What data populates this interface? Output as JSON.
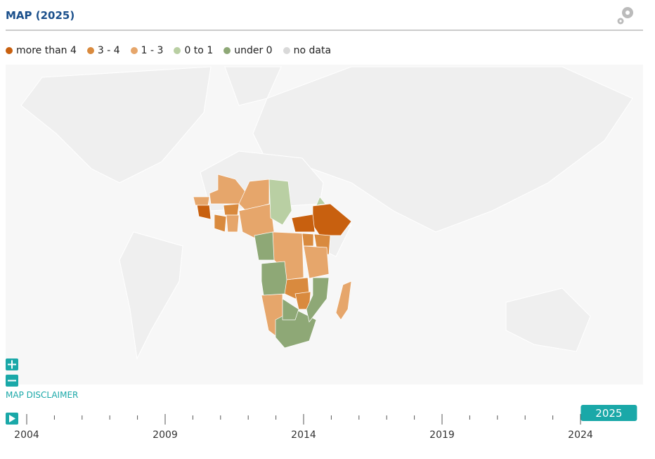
{
  "header": {
    "title": "MAP (2025)"
  },
  "legend": {
    "items": [
      {
        "label": "more than 4",
        "color": "#c8600f"
      },
      {
        "label": "3 - 4",
        "color": "#d98a3e"
      },
      {
        "label": "1 - 3",
        "color": "#e6a66b"
      },
      {
        "label": "0 to 1",
        "color": "#b9cfa3"
      },
      {
        "label": "under 0",
        "color": "#8ea876"
      },
      {
        "label": "no data",
        "color": "#d9d9d9"
      }
    ]
  },
  "map": {
    "disclaimer": "MAP DISCLAIMER"
  },
  "timeline": {
    "labels": [
      2004,
      2009,
      2014,
      2019,
      2024
    ],
    "current": 2025
  }
}
